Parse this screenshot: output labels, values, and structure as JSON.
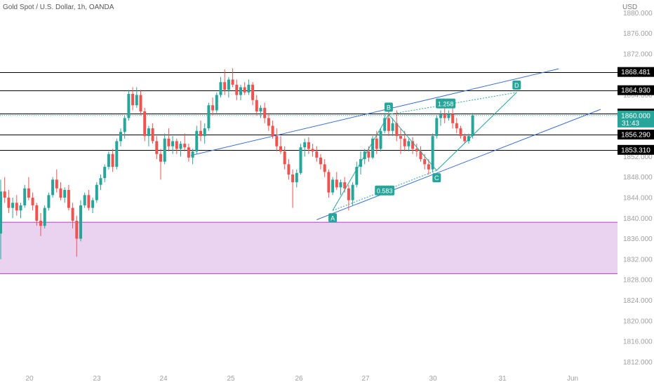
{
  "header": {
    "title": "Gold Spot / U.S. Dollar, 1h, OANDA",
    "currency": "USD"
  },
  "colors": {
    "bull": "#26a69a",
    "bear": "#ef5350",
    "pattern": "#26a69a",
    "channel": "#3d6fd8",
    "zone_fill": "#e9d3f0",
    "zone_border": "#b43dc8",
    "level_line": "#000000",
    "axis_text": "#a0a0a0"
  },
  "chart_data": {
    "type": "candlestick",
    "title": "Gold Spot / U.S. Dollar, 1h, OANDA",
    "y_axis": {
      "label": "USD",
      "ticks": [
        1880,
        1876,
        1872,
        1868,
        1864,
        1860,
        1856,
        1852,
        1848,
        1844,
        1840,
        1836,
        1832,
        1828,
        1824,
        1820,
        1816,
        1812
      ],
      "range": [
        1810.0,
        1882.5
      ]
    },
    "x_axis": {
      "ticks": [
        "20",
        "23",
        "24",
        "25",
        "26",
        "27",
        "30",
        "31",
        "Jun"
      ]
    },
    "last_price": {
      "value": "1860.000",
      "countdown": "31:43"
    },
    "horizontal_levels": [
      "1868.481",
      "1864.930",
      "1860.389",
      "1856.290",
      "1853.310"
    ],
    "zone": {
      "top": 1839.2,
      "bottom": 1829.2
    },
    "harmonic_pattern": {
      "points": [
        {
          "label": "A",
          "price": 1841.5
        },
        {
          "label": "B",
          "price": 1860.2
        },
        {
          "label": "C",
          "price": 1849.3
        },
        {
          "label": "D",
          "price": 1864.5
        }
      ],
      "ratios": [
        "0.583",
        "1.258"
      ]
    },
    "channel_lines": 2,
    "candles": [
      [
        1837.0,
        1847.5,
        1832.0,
        1845.2
      ],
      [
        1845.2,
        1848.0,
        1843.0,
        1844.0
      ],
      [
        1844.0,
        1845.5,
        1841.0,
        1842.0
      ],
      [
        1842.0,
        1844.0,
        1840.0,
        1843.0
      ],
      [
        1843.0,
        1844.5,
        1840.5,
        1841.5
      ],
      [
        1841.5,
        1843.0,
        1840.0,
        1842.5
      ],
      [
        1842.5,
        1846.5,
        1842.0,
        1845.8
      ],
      [
        1845.8,
        1848.0,
        1843.5,
        1844.0
      ],
      [
        1844.0,
        1845.0,
        1841.5,
        1842.5
      ],
      [
        1842.5,
        1843.0,
        1838.5,
        1839.5
      ],
      [
        1839.5,
        1841.0,
        1836.5,
        1838.5
      ],
      [
        1838.5,
        1842.5,
        1838.0,
        1842.0
      ],
      [
        1842.0,
        1845.0,
        1841.5,
        1844.5
      ],
      [
        1844.5,
        1848.0,
        1844.0,
        1847.5
      ],
      [
        1847.5,
        1849.5,
        1845.0,
        1845.8
      ],
      [
        1845.8,
        1847.0,
        1843.5,
        1844.0
      ],
      [
        1844.0,
        1846.0,
        1843.0,
        1845.5
      ],
      [
        1845.5,
        1846.5,
        1841.5,
        1842.0
      ],
      [
        1842.0,
        1843.0,
        1838.0,
        1839.5
      ],
      [
        1839.5,
        1840.5,
        1832.5,
        1836.0
      ],
      [
        1836.0,
        1843.5,
        1835.5,
        1842.5
      ],
      [
        1842.5,
        1845.0,
        1842.0,
        1844.5
      ],
      [
        1844.5,
        1845.5,
        1841.5,
        1842.0
      ],
      [
        1842.0,
        1844.0,
        1841.0,
        1843.5
      ],
      [
        1843.5,
        1847.0,
        1843.0,
        1846.5
      ],
      [
        1846.5,
        1848.5,
        1845.5,
        1847.8
      ],
      [
        1847.8,
        1850.5,
        1847.0,
        1850.0
      ],
      [
        1850.0,
        1853.0,
        1849.5,
        1852.5
      ],
      [
        1852.5,
        1853.5,
        1849.0,
        1850.0
      ],
      [
        1850.0,
        1855.5,
        1849.5,
        1855.0
      ],
      [
        1855.0,
        1857.5,
        1854.0,
        1856.8
      ],
      [
        1856.8,
        1860.0,
        1855.5,
        1859.5
      ],
      [
        1859.5,
        1865.0,
        1859.0,
        1864.2
      ],
      [
        1864.2,
        1865.5,
        1861.0,
        1862.0
      ],
      [
        1862.0,
        1865.5,
        1861.5,
        1864.0
      ],
      [
        1864.0,
        1865.0,
        1860.0,
        1860.8
      ],
      [
        1860.8,
        1861.5,
        1855.0,
        1856.0
      ],
      [
        1856.0,
        1858.0,
        1854.0,
        1857.5
      ],
      [
        1857.5,
        1858.5,
        1854.5,
        1855.0
      ],
      [
        1855.0,
        1856.0,
        1851.5,
        1852.5
      ],
      [
        1852.5,
        1853.5,
        1847.5,
        1851.0
      ],
      [
        1851.0,
        1856.5,
        1850.5,
        1855.5
      ],
      [
        1855.5,
        1857.5,
        1853.0,
        1854.0
      ],
      [
        1854.0,
        1856.0,
        1852.5,
        1855.0
      ],
      [
        1855.0,
        1855.5,
        1852.5,
        1853.5
      ],
      [
        1853.5,
        1855.0,
        1852.0,
        1854.5
      ],
      [
        1854.5,
        1856.5,
        1853.0,
        1853.8
      ],
      [
        1853.8,
        1854.5,
        1851.0,
        1851.8
      ],
      [
        1851.8,
        1853.5,
        1850.5,
        1853.0
      ],
      [
        1853.0,
        1858.0,
        1852.5,
        1857.0
      ],
      [
        1857.0,
        1859.0,
        1855.0,
        1856.0
      ],
      [
        1856.0,
        1858.5,
        1854.5,
        1857.5
      ],
      [
        1857.5,
        1862.5,
        1857.0,
        1862.0
      ],
      [
        1862.0,
        1863.5,
        1860.0,
        1861.0
      ],
      [
        1861.0,
        1864.5,
        1860.5,
        1864.0
      ],
      [
        1864.0,
        1867.5,
        1863.5,
        1866.5
      ],
      [
        1866.5,
        1869.0,
        1864.0,
        1865.0
      ],
      [
        1865.0,
        1867.5,
        1863.5,
        1867.0
      ],
      [
        1867.0,
        1869.2,
        1865.5,
        1866.0
      ],
      [
        1866.0,
        1867.0,
        1863.0,
        1864.0
      ],
      [
        1864.0,
        1866.0,
        1863.0,
        1865.5
      ],
      [
        1865.5,
        1866.5,
        1864.0,
        1864.5
      ],
      [
        1864.5,
        1867.0,
        1864.0,
        1866.0
      ],
      [
        1866.0,
        1866.5,
        1862.0,
        1863.0
      ],
      [
        1863.0,
        1864.0,
        1860.0,
        1860.8
      ],
      [
        1860.8,
        1862.0,
        1859.5,
        1861.5
      ],
      [
        1861.5,
        1862.5,
        1858.5,
        1859.5
      ],
      [
        1859.5,
        1860.5,
        1857.0,
        1858.0
      ],
      [
        1858.0,
        1859.0,
        1855.5,
        1856.0
      ],
      [
        1856.0,
        1857.5,
        1853.0,
        1854.0
      ],
      [
        1854.0,
        1856.0,
        1852.5,
        1853.0
      ],
      [
        1853.0,
        1854.0,
        1849.5,
        1850.5
      ],
      [
        1850.5,
        1851.5,
        1847.5,
        1848.5
      ],
      [
        1848.5,
        1849.5,
        1842.0,
        1847.0
      ],
      [
        1847.0,
        1849.5,
        1846.0,
        1848.8
      ],
      [
        1848.8,
        1854.5,
        1848.5,
        1853.8
      ],
      [
        1853.8,
        1855.5,
        1852.0,
        1854.8
      ],
      [
        1854.8,
        1855.8,
        1852.5,
        1853.5
      ],
      [
        1853.5,
        1854.5,
        1852.0,
        1853.0
      ],
      [
        1853.0,
        1854.0,
        1851.0,
        1851.8
      ],
      [
        1851.8,
        1852.5,
        1849.5,
        1850.5
      ],
      [
        1850.5,
        1851.5,
        1848.0,
        1849.0
      ],
      [
        1849.0,
        1849.5,
        1844.0,
        1845.0
      ],
      [
        1845.0,
        1848.0,
        1844.5,
        1847.5
      ],
      [
        1847.5,
        1849.0,
        1845.5,
        1846.0
      ],
      [
        1846.0,
        1847.5,
        1844.5,
        1847.0
      ],
      [
        1847.0,
        1848.0,
        1845.0,
        1845.8
      ],
      [
        1845.8,
        1846.5,
        1841.5,
        1843.5
      ],
      [
        1843.5,
        1847.0,
        1842.5,
        1846.5
      ],
      [
        1846.5,
        1851.0,
        1846.0,
        1850.0
      ],
      [
        1850.0,
        1853.0,
        1848.5,
        1851.5
      ],
      [
        1851.5,
        1853.5,
        1850.5,
        1853.0
      ],
      [
        1853.0,
        1854.0,
        1851.0,
        1851.8
      ],
      [
        1851.8,
        1856.0,
        1851.5,
        1855.5
      ],
      [
        1855.5,
        1857.0,
        1852.5,
        1853.5
      ],
      [
        1853.5,
        1857.5,
        1853.0,
        1857.0
      ],
      [
        1857.0,
        1860.5,
        1856.5,
        1859.5
      ],
      [
        1859.5,
        1861.0,
        1856.0,
        1857.0
      ],
      [
        1857.0,
        1859.5,
        1856.0,
        1858.5
      ],
      [
        1858.5,
        1861.0,
        1855.0,
        1856.0
      ],
      [
        1856.0,
        1857.5,
        1852.5,
        1855.5
      ],
      [
        1855.5,
        1857.0,
        1853.0,
        1854.0
      ],
      [
        1854.0,
        1855.5,
        1853.0,
        1855.0
      ],
      [
        1855.0,
        1855.8,
        1852.5,
        1853.5
      ],
      [
        1853.5,
        1854.5,
        1852.0,
        1853.0
      ],
      [
        1853.0,
        1854.0,
        1851.0,
        1851.5
      ],
      [
        1851.5,
        1852.5,
        1849.5,
        1850.5
      ],
      [
        1850.5,
        1851.5,
        1848.5,
        1849.5
      ],
      [
        1849.5,
        1856.5,
        1849.0,
        1856.0
      ],
      [
        1856.0,
        1860.0,
        1855.5,
        1859.5
      ],
      [
        1859.5,
        1861.0,
        1858.0,
        1860.2
      ],
      [
        1860.2,
        1861.5,
        1858.5,
        1859.5
      ],
      [
        1859.5,
        1861.0,
        1859.0,
        1860.3
      ],
      [
        1860.3,
        1862.8,
        1857.5,
        1858.5
      ],
      [
        1858.5,
        1859.5,
        1856.5,
        1857.5
      ],
      [
        1857.5,
        1858.0,
        1855.5,
        1856.0
      ],
      [
        1856.0,
        1856.5,
        1854.5,
        1855.0
      ],
      [
        1855.0,
        1856.5,
        1854.5,
        1856.0
      ],
      [
        1856.0,
        1860.5,
        1855.5,
        1860.0
      ]
    ]
  }
}
